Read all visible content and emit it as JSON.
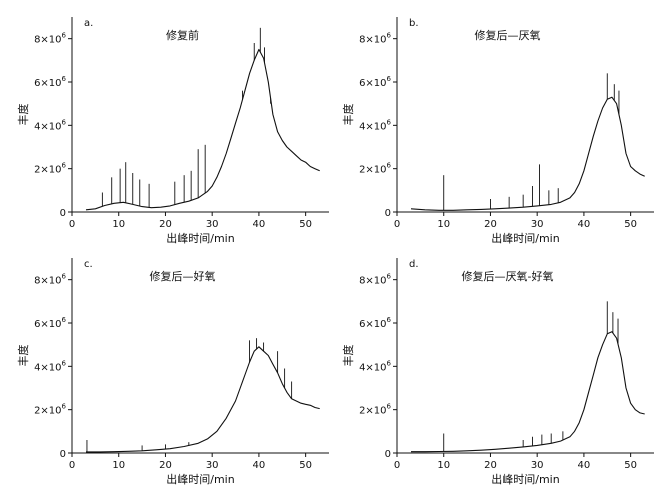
{
  "chart_data": [
    {
      "type": "line",
      "panel_label": "a.",
      "title": "修复前",
      "xlabel": "出峰时间/min",
      "ylabel": "丰度",
      "xlim": [
        0,
        55
      ],
      "ylim": [
        0,
        9000000
      ],
      "x_ticks": [
        0,
        10,
        20,
        30,
        40,
        50
      ],
      "y_ticks": [
        0,
        2000000,
        4000000,
        6000000,
        8000000
      ],
      "y_tick_labels": [
        "0",
        "2×10",
        "4×10",
        "6×10",
        "8×10"
      ],
      "y_tick_exponent": "6",
      "grid": false,
      "color": "#111111",
      "series": [
        {
          "x": [
            3,
            5,
            7,
            9,
            11,
            13,
            15,
            17,
            19,
            21,
            23,
            25,
            27,
            28,
            29,
            30,
            31,
            32,
            33,
            34,
            35,
            36,
            37,
            38,
            39,
            40,
            41,
            42,
            43,
            44,
            45,
            46,
            47,
            48,
            49,
            50,
            51,
            52,
            53
          ],
          "values": [
            100000,
            150000,
            300000,
            400000,
            450000,
            350000,
            250000,
            200000,
            220000,
            280000,
            400000,
            500000,
            650000,
            800000,
            950000,
            1200000,
            1600000,
            2100000,
            2700000,
            3400000,
            4100000,
            4800000,
            5600000,
            6400000,
            7000000,
            7500000,
            7100000,
            6000000,
            4500000,
            3700000,
            3300000,
            3000000,
            2800000,
            2600000,
            2400000,
            2300000,
            2100000,
            2000000,
            1900000
          ]
        }
      ],
      "spikes": [
        {
          "x": 6.5,
          "y": 900000
        },
        {
          "x": 8.5,
          "y": 1600000
        },
        {
          "x": 10.3,
          "y": 2000000
        },
        {
          "x": 11.5,
          "y": 2300000
        },
        {
          "x": 13,
          "y": 1800000
        },
        {
          "x": 14.5,
          "y": 1500000
        },
        {
          "x": 16.5,
          "y": 1300000
        },
        {
          "x": 22,
          "y": 1400000
        },
        {
          "x": 24,
          "y": 1700000
        },
        {
          "x": 25.5,
          "y": 1900000
        },
        {
          "x": 27,
          "y": 2900000
        },
        {
          "x": 28.5,
          "y": 3100000
        },
        {
          "x": 36.5,
          "y": 5600000
        },
        {
          "x": 39,
          "y": 7800000
        },
        {
          "x": 40.3,
          "y": 8500000
        },
        {
          "x": 41.2,
          "y": 7600000
        },
        {
          "x": 42.5,
          "y": 5000000
        }
      ]
    },
    {
      "type": "line",
      "panel_label": "b.",
      "title": "修复后—厌氧",
      "xlabel": "出峰时间/min",
      "ylabel": "丰度",
      "xlim": [
        0,
        55
      ],
      "ylim": [
        0,
        9000000
      ],
      "x_ticks": [
        0,
        10,
        20,
        30,
        40,
        50
      ],
      "y_ticks": [
        0,
        2000000,
        4000000,
        6000000,
        8000000
      ],
      "y_tick_labels": [
        "0",
        "2×10",
        "4×10",
        "6×10",
        "8×10"
      ],
      "y_tick_exponent": "6",
      "grid": false,
      "color": "#111111",
      "series": [
        {
          "x": [
            3,
            6,
            9,
            12,
            15,
            18,
            21,
            24,
            27,
            30,
            33,
            35,
            37,
            38,
            39,
            40,
            41,
            42,
            43,
            44,
            45,
            46,
            47,
            48,
            49,
            50,
            51,
            52,
            53
          ],
          "values": [
            150000,
            100000,
            80000,
            80000,
            100000,
            120000,
            150000,
            180000,
            220000,
            280000,
            350000,
            450000,
            650000,
            900000,
            1300000,
            1900000,
            2700000,
            3500000,
            4200000,
            4800000,
            5200000,
            5300000,
            5000000,
            4000000,
            2700000,
            2100000,
            1900000,
            1750000,
            1650000
          ]
        }
      ],
      "spikes": [
        {
          "x": 10,
          "y": 1700000
        },
        {
          "x": 20,
          "y": 600000
        },
        {
          "x": 24,
          "y": 700000
        },
        {
          "x": 27,
          "y": 800000
        },
        {
          "x": 29,
          "y": 1200000
        },
        {
          "x": 30.5,
          "y": 2200000
        },
        {
          "x": 32.5,
          "y": 1000000
        },
        {
          "x": 34.5,
          "y": 1100000
        },
        {
          "x": 45,
          "y": 6400000
        },
        {
          "x": 46.5,
          "y": 5900000
        },
        {
          "x": 47.5,
          "y": 5600000
        }
      ]
    },
    {
      "type": "line",
      "panel_label": "c.",
      "title": "修复后—好氧",
      "xlabel": "出峰时间/min",
      "ylabel": "丰度",
      "xlim": [
        0,
        55
      ],
      "ylim": [
        0,
        9000000
      ],
      "x_ticks": [
        0,
        10,
        20,
        30,
        40,
        50
      ],
      "y_ticks": [
        0,
        2000000,
        4000000,
        6000000,
        8000000
      ],
      "y_tick_labels": [
        "0",
        "2×10",
        "4×10",
        "6×10",
        "8×10"
      ],
      "y_tick_exponent": "6",
      "grid": false,
      "color": "#111111",
      "series": [
        {
          "x": [
            3,
            6,
            9,
            12,
            15,
            18,
            21,
            24,
            27,
            29,
            31,
            33,
            35,
            36,
            37,
            38,
            39,
            40,
            41,
            42,
            43,
            44,
            45,
            46,
            47,
            48,
            49,
            50,
            51,
            52,
            53
          ],
          "values": [
            50000,
            50000,
            60000,
            80000,
            100000,
            150000,
            200000,
            300000,
            450000,
            650000,
            1000000,
            1600000,
            2400000,
            3000000,
            3600000,
            4200000,
            4700000,
            4900000,
            4700000,
            4500000,
            4100000,
            3700000,
            3200000,
            2800000,
            2500000,
            2400000,
            2300000,
            2250000,
            2200000,
            2100000,
            2050000
          ]
        }
      ],
      "spikes": [
        {
          "x": 3.2,
          "y": 600000
        },
        {
          "x": 15,
          "y": 350000
        },
        {
          "x": 20,
          "y": 400000
        },
        {
          "x": 25,
          "y": 500000
        },
        {
          "x": 38,
          "y": 5200000
        },
        {
          "x": 39.5,
          "y": 5300000
        },
        {
          "x": 41,
          "y": 5100000
        },
        {
          "x": 44,
          "y": 4700000
        },
        {
          "x": 45.5,
          "y": 3900000
        },
        {
          "x": 47,
          "y": 3300000
        }
      ]
    },
    {
      "type": "line",
      "panel_label": "d.",
      "title": "修复后—厌氧-好氧",
      "xlabel": "出峰时间/min",
      "ylabel": "丰度",
      "xlim": [
        0,
        55
      ],
      "ylim": [
        0,
        9000000
      ],
      "x_ticks": [
        0,
        10,
        20,
        30,
        40,
        50
      ],
      "y_ticks": [
        0,
        2000000,
        4000000,
        6000000,
        8000000
      ],
      "y_tick_labels": [
        "0",
        "2×10",
        "4×10",
        "6×10",
        "8×10"
      ],
      "y_tick_exponent": "6",
      "grid": false,
      "color": "#111111",
      "series": [
        {
          "x": [
            3,
            6,
            9,
            12,
            15,
            18,
            21,
            24,
            27,
            30,
            33,
            35,
            37,
            38,
            39,
            40,
            41,
            42,
            43,
            44,
            45,
            46,
            47,
            48,
            49,
            50,
            51,
            52,
            53
          ],
          "values": [
            60000,
            60000,
            70000,
            80000,
            100000,
            130000,
            170000,
            220000,
            280000,
            350000,
            450000,
            550000,
            750000,
            1000000,
            1400000,
            2000000,
            2800000,
            3600000,
            4400000,
            5000000,
            5500000,
            5600000,
            5300000,
            4400000,
            3000000,
            2300000,
            2000000,
            1850000,
            1800000
          ]
        }
      ],
      "spikes": [
        {
          "x": 10,
          "y": 900000
        },
        {
          "x": 27,
          "y": 600000
        },
        {
          "x": 29,
          "y": 750000
        },
        {
          "x": 31,
          "y": 850000
        },
        {
          "x": 33,
          "y": 900000
        },
        {
          "x": 35.5,
          "y": 1000000
        },
        {
          "x": 45,
          "y": 7000000
        },
        {
          "x": 46.2,
          "y": 6500000
        },
        {
          "x": 47.3,
          "y": 6200000
        }
      ]
    }
  ]
}
